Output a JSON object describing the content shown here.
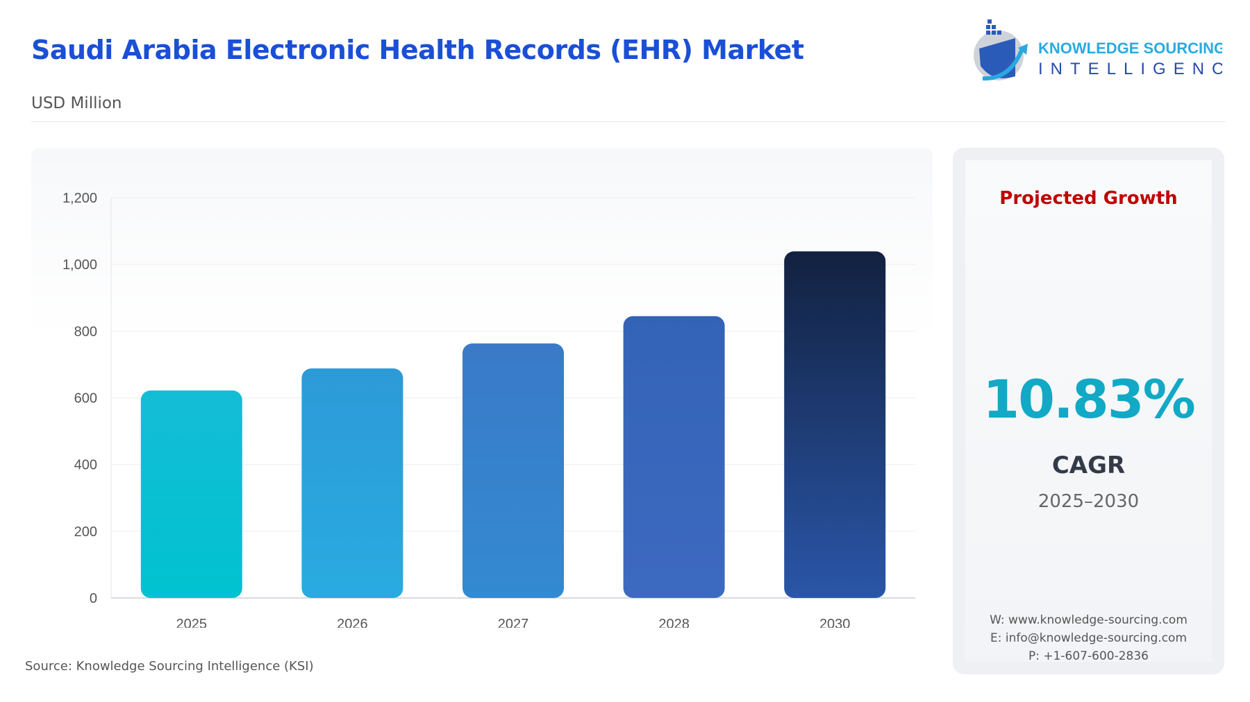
{
  "header": {
    "title": "Saudi Arabia Electronic Health Records (EHR) Market",
    "subtitle": "USD Million"
  },
  "logo": {
    "line1": "KNOWLEDGE SOURCING",
    "line2": "INTELLIGENCE"
  },
  "chart_data": {
    "type": "bar",
    "categories": [
      "2025",
      "2026",
      "2027",
      "2028",
      "2030"
    ],
    "values": [
      622,
      688,
      763,
      845,
      1039
    ],
    "ylabel": "USD Million",
    "ylim": [
      0,
      1200
    ],
    "yticks": [
      0,
      200,
      400,
      600,
      800,
      1000,
      1200
    ],
    "ytick_labels": [
      "0",
      "200",
      "400",
      "600",
      "800",
      "1,000",
      "1,200"
    ],
    "grid": true,
    "colors": [
      [
        "#14bdd6",
        "#00c2d0"
      ],
      [
        "#2d9ad8",
        "#29abe0"
      ],
      [
        "#3a7ac8",
        "#338ad0"
      ],
      [
        "#3363b7",
        "#3d6ac0"
      ],
      [
        "#12213f",
        "#2a56a8"
      ]
    ]
  },
  "side": {
    "heading": "Projected Growth",
    "cagr": "10.83%",
    "cagr_label": "CAGR",
    "period": "2025–2030",
    "website": "W: www.knowledge-sourcing.com",
    "email": "E: info@knowledge-sourcing.com",
    "phone": "P: +1-607-600-2836"
  },
  "footer": {
    "source": "Source: Knowledge Sourcing Intelligence (KSI)"
  }
}
